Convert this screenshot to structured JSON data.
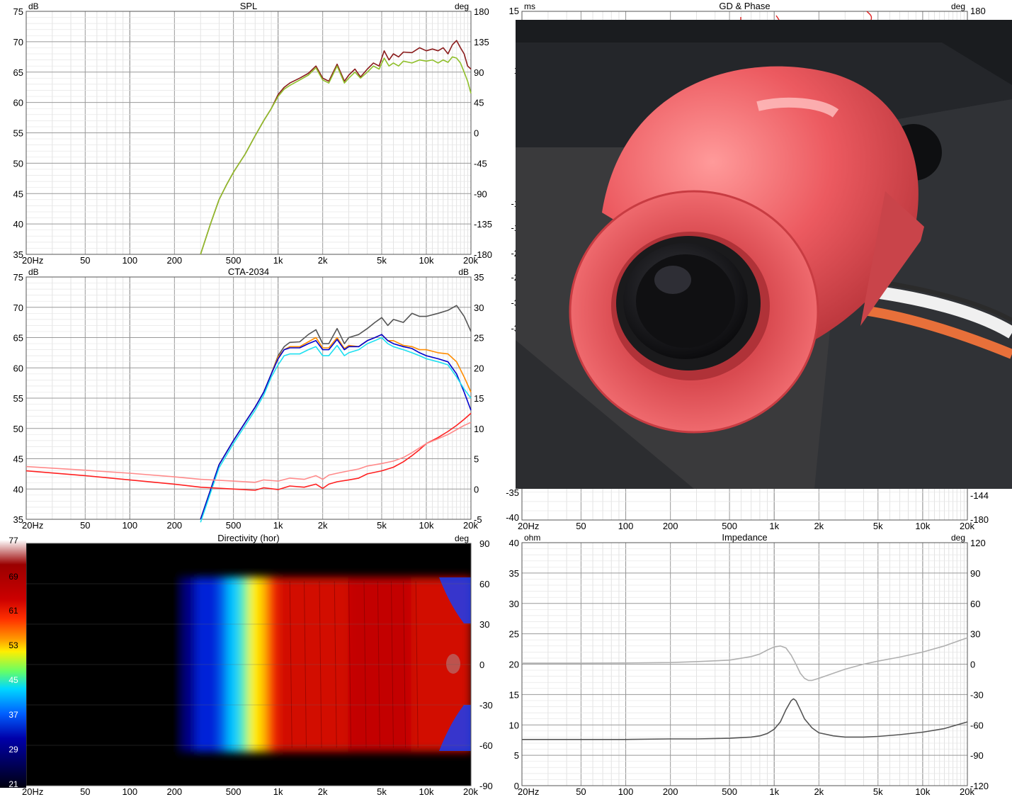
{
  "x_ticks": [
    "20Hz",
    "50",
    "100",
    "200",
    "500",
    "1k",
    "2k",
    "5k",
    "10k",
    "20k"
  ],
  "chart_data": [
    {
      "id": "spl",
      "type": "line",
      "title": "SPL",
      "ylabel": "dB",
      "y2label": "deg",
      "xscale": "log",
      "xlim": [
        20,
        20000
      ],
      "ylim": [
        35,
        75
      ],
      "y_ticks": [
        75,
        70,
        65,
        60,
        55,
        50,
        45,
        40,
        35
      ],
      "y2lim": [
        -180,
        180
      ],
      "y2_ticks": [
        180,
        135,
        90,
        45,
        0,
        -45,
        -90,
        -135,
        -180
      ],
      "grid": true,
      "series": [
        {
          "color": "#8a1c1c",
          "x": [
            300,
            350,
            400,
            450,
            500,
            600,
            700,
            800,
            900,
            1000,
            1100,
            1200,
            1400,
            1600,
            1800,
            2000,
            2200,
            2500,
            2800,
            3000,
            3300,
            3600,
            4000,
            4400,
            4800,
            5200,
            5600,
            6000,
            6500,
            7000,
            8000,
            9000,
            10000,
            11000,
            12000,
            13000,
            14000,
            15000,
            16000,
            17000,
            18000,
            19000,
            20000
          ],
          "y": [
            35,
            40,
            44,
            46.5,
            48.5,
            51.5,
            54.5,
            57,
            59,
            61.3,
            62.5,
            63.2,
            64,
            64.8,
            66,
            64,
            63.5,
            66.3,
            63.5,
            64.5,
            65.5,
            64.2,
            65.5,
            66.5,
            66,
            68.5,
            67,
            68,
            67.5,
            68.3,
            68.2,
            69,
            68.5,
            68.8,
            68.5,
            69,
            68,
            69.5,
            70.2,
            69,
            68,
            66,
            65.5
          ]
        },
        {
          "color": "#8fbf2a",
          "x": [
            300,
            350,
            400,
            450,
            500,
            600,
            700,
            800,
            900,
            1000,
            1100,
            1200,
            1400,
            1600,
            1800,
            2000,
            2200,
            2500,
            2800,
            3000,
            3300,
            3600,
            4000,
            4400,
            4800,
            5200,
            5600,
            6000,
            6500,
            7000,
            8000,
            9000,
            10000,
            11000,
            12000,
            13000,
            14000,
            15000,
            16000,
            17000,
            18000,
            19000,
            20000
          ],
          "y": [
            35,
            40,
            44,
            46.5,
            48.5,
            51.5,
            54.5,
            57,
            59,
            61,
            62.2,
            62.8,
            63.7,
            64.5,
            65.7,
            63.7,
            63.2,
            66,
            63.2,
            64,
            65,
            64,
            65,
            66,
            65.5,
            67.3,
            66,
            66.5,
            66,
            66.8,
            66.5,
            67,
            66.8,
            67,
            66.5,
            67,
            66.6,
            67.5,
            67.3,
            66.5,
            65,
            63.5,
            61.5
          ]
        }
      ]
    },
    {
      "id": "cta",
      "type": "line",
      "title": "CTA-2034",
      "ylabel": "dB",
      "y2label": "dB",
      "xscale": "log",
      "xlim": [
        20,
        20000
      ],
      "ylim": [
        35,
        75
      ],
      "y_ticks": [
        75,
        70,
        65,
        60,
        55,
        50,
        45,
        40,
        35
      ],
      "y2lim": [
        -5,
        35
      ],
      "y2_ticks": [
        35,
        30,
        25,
        20,
        15,
        10,
        5,
        0,
        -5
      ],
      "grid": true,
      "series": [
        {
          "color": "#555555",
          "x": [
            300,
            400,
            500,
            600,
            700,
            800,
            900,
            1000,
            1100,
            1200,
            1400,
            1600,
            1800,
            2000,
            2200,
            2500,
            2800,
            3000,
            3500,
            4000,
            4500,
            5000,
            5500,
            6000,
            7000,
            8000,
            9000,
            10000,
            12000,
            14000,
            16000,
            18000,
            20000
          ],
          "y": [
            35,
            44,
            48,
            51,
            53.5,
            56,
            59,
            62,
            63.5,
            64.2,
            64.3,
            65.5,
            66.3,
            64,
            64,
            66.5,
            64,
            65,
            65.5,
            66.5,
            67.5,
            68.3,
            67,
            68,
            67.5,
            69,
            68.5,
            68.5,
            69,
            69.5,
            70.3,
            68.5,
            66
          ]
        },
        {
          "color": "#ff8c00",
          "x": [
            300,
            400,
            500,
            600,
            700,
            800,
            900,
            1000,
            1100,
            1200,
            1400,
            1600,
            1800,
            2000,
            2200,
            2500,
            2800,
            3000,
            3500,
            4000,
            4500,
            5000,
            5500,
            6000,
            7000,
            8000,
            9000,
            10000,
            12000,
            14000,
            16000,
            18000,
            20000
          ],
          "y": [
            35,
            44,
            48,
            51,
            53.5,
            56,
            59,
            61.8,
            63,
            63.5,
            63.5,
            64.3,
            65,
            63.3,
            63.3,
            65,
            63.2,
            63.7,
            63.5,
            64.5,
            65,
            65.5,
            64.5,
            64.5,
            63.7,
            63.5,
            63,
            63,
            62.5,
            62.3,
            61,
            58.5,
            56
          ]
        },
        {
          "color": "#0000cc",
          "x": [
            300,
            400,
            500,
            600,
            700,
            800,
            900,
            1000,
            1100,
            1200,
            1400,
            1600,
            1800,
            2000,
            2200,
            2500,
            2800,
            3000,
            3500,
            4000,
            4500,
            5000,
            5500,
            6000,
            7000,
            8000,
            9000,
            10000,
            12000,
            14000,
            16000,
            18000,
            20000
          ],
          "y": [
            35,
            44,
            48,
            51,
            53.5,
            56,
            59,
            61.5,
            63,
            63.3,
            63.3,
            64,
            64.5,
            63,
            63,
            64.7,
            63,
            63.5,
            63.5,
            64.5,
            65,
            65.5,
            64.5,
            64,
            63.5,
            63.2,
            62.5,
            62,
            61.5,
            61,
            59,
            56,
            53
          ]
        },
        {
          "color": "#1ee0f0",
          "x": [
            300,
            400,
            500,
            600,
            700,
            800,
            900,
            1000,
            1100,
            1200,
            1400,
            1600,
            1800,
            2000,
            2200,
            2500,
            2800,
            3000,
            3500,
            4000,
            4500,
            5000,
            5500,
            6000,
            7000,
            8000,
            9000,
            10000,
            12000,
            14000,
            16000,
            18000,
            20000
          ],
          "y": [
            34.5,
            43.5,
            47.5,
            50.5,
            53,
            55.5,
            58.5,
            60.5,
            62,
            62.3,
            62.3,
            63,
            63.5,
            62,
            62,
            63.7,
            62,
            62.5,
            63,
            64,
            64.5,
            65,
            64,
            63.5,
            63,
            62.5,
            62,
            61.5,
            61,
            60.5,
            58.5,
            56.5,
            55
          ]
        },
        {
          "color": "#ff2020",
          "axis": "y2",
          "x": [
            20,
            50,
            100,
            200,
            300,
            500,
            700,
            800,
            1000,
            1200,
            1500,
            1800,
            2000,
            2200,
            2500,
            3000,
            3500,
            4000,
            5000,
            6000,
            7000,
            8000,
            9000,
            10000,
            12000,
            14000,
            16000,
            18000,
            20000
          ],
          "y": [
            3,
            2.2,
            1.5,
            0.8,
            0.3,
            0,
            -0.2,
            0.2,
            -0.1,
            0.5,
            0.3,
            0.8,
            0.1,
            0.8,
            1.2,
            1.5,
            1.8,
            2.5,
            3,
            3.6,
            4.5,
            5.5,
            6.5,
            7.5,
            8.5,
            9.5,
            10.5,
            11.5,
            12.5
          ]
        },
        {
          "color": "#ff8a8a",
          "axis": "y2",
          "x": [
            20,
            50,
            100,
            200,
            300,
            500,
            700,
            800,
            1000,
            1200,
            1500,
            1800,
            2000,
            2200,
            2500,
            3000,
            3500,
            4000,
            5000,
            6000,
            7000,
            8000,
            9000,
            10000,
            12000,
            14000,
            16000,
            18000,
            20000
          ],
          "y": [
            3.7,
            3.1,
            2.6,
            2,
            1.6,
            1.3,
            1.1,
            1.5,
            1.3,
            1.8,
            1.6,
            2.2,
            1.6,
            2.3,
            2.6,
            3,
            3.3,
            3.8,
            4.2,
            4.6,
            5.2,
            6,
            6.8,
            7.5,
            8.3,
            9,
            9.8,
            10.5,
            11
          ]
        }
      ]
    },
    {
      "id": "directivity",
      "type": "heatmap",
      "title": "Directivity (hor)",
      "y2label": "deg",
      "xscale": "log",
      "xlim": [
        20,
        20000
      ],
      "ylim": [
        -90,
        90
      ],
      "y2_ticks": [
        90,
        60,
        30,
        0,
        -30,
        -60,
        -90
      ],
      "colorbar": {
        "ticks": [
          77,
          69,
          61,
          53,
          45,
          37,
          29,
          21
        ]
      },
      "bands": [
        {
          "from": 20,
          "to": 230,
          "db": 21
        },
        {
          "from": 230,
          "to": 280,
          "db": 30
        },
        {
          "from": 280,
          "to": 400,
          "db": 36
        },
        {
          "from": 400,
          "to": 460,
          "db": 40
        },
        {
          "from": 460,
          "to": 560,
          "db": 45
        },
        {
          "from": 560,
          "to": 640,
          "db": 49
        },
        {
          "from": 640,
          "to": 760,
          "db": 53
        },
        {
          "from": 760,
          "to": 860,
          "db": 55
        },
        {
          "from": 860,
          "to": 1000,
          "db": 60
        },
        {
          "from": 1000,
          "to": 3000,
          "db": 63
        },
        {
          "from": 3000,
          "to": 8000,
          "db": 64
        },
        {
          "from": 8000,
          "to": 20000,
          "db": 63
        }
      ],
      "coverage_deg": [
        -65,
        65
      ]
    },
    {
      "id": "gd_phase",
      "type": "line",
      "title": "GD & Phase",
      "ylabel": "ms",
      "y2label": "deg",
      "xscale": "log",
      "xlim": [
        20,
        20000
      ],
      "y_visible_ticks": [
        "15",
        "1",
        "-1",
        "-1",
        "-2",
        "-2",
        "-3",
        "-3",
        "-35",
        "-40"
      ],
      "y2_visible_ticks": [
        "180",
        "-144",
        "-180"
      ]
    },
    {
      "id": "impedance",
      "type": "line",
      "title": "Impedance",
      "ylabel": "ohm",
      "y2label": "deg",
      "xscale": "log",
      "xlim": [
        20,
        20000
      ],
      "ylim": [
        0,
        40
      ],
      "y_ticks": [
        40,
        35,
        30,
        25,
        20,
        15,
        10,
        5,
        0
      ],
      "y2lim": [
        -120,
        120
      ],
      "y2_ticks": [
        120,
        90,
        60,
        30,
        0,
        -30,
        -60,
        -90,
        -120
      ],
      "grid": true,
      "series": [
        {
          "color": "#555555",
          "x": [
            20,
            50,
            100,
            200,
            300,
            500,
            700,
            800,
            900,
            1000,
            1100,
            1200,
            1300,
            1350,
            1400,
            1500,
            1600,
            1800,
            2000,
            2500,
            3000,
            4000,
            5000,
            7000,
            10000,
            14000,
            20000
          ],
          "y": [
            7.6,
            7.6,
            7.6,
            7.7,
            7.7,
            7.8,
            8,
            8.2,
            8.6,
            9.3,
            10.5,
            12.5,
            14,
            14.3,
            14,
            12.5,
            11,
            9.5,
            8.7,
            8.2,
            8,
            8,
            8.1,
            8.4,
            8.8,
            9.4,
            10.5
          ]
        },
        {
          "color": "#b0b0b0",
          "axis": "y2",
          "x": [
            20,
            50,
            100,
            200,
            300,
            500,
            700,
            800,
            900,
            1000,
            1100,
            1200,
            1300,
            1400,
            1500,
            1600,
            1700,
            1800,
            2000,
            2500,
            3000,
            4000,
            5000,
            7000,
            10000,
            14000,
            20000
          ],
          "y": [
            1,
            1,
            1.2,
            1.6,
            2.5,
            4,
            7.5,
            10,
            14,
            17,
            18,
            16,
            9,
            0,
            -9,
            -14,
            -16,
            -16,
            -14,
            -9,
            -5,
            0,
            3,
            7,
            12,
            18,
            26
          ]
        }
      ]
    }
  ]
}
